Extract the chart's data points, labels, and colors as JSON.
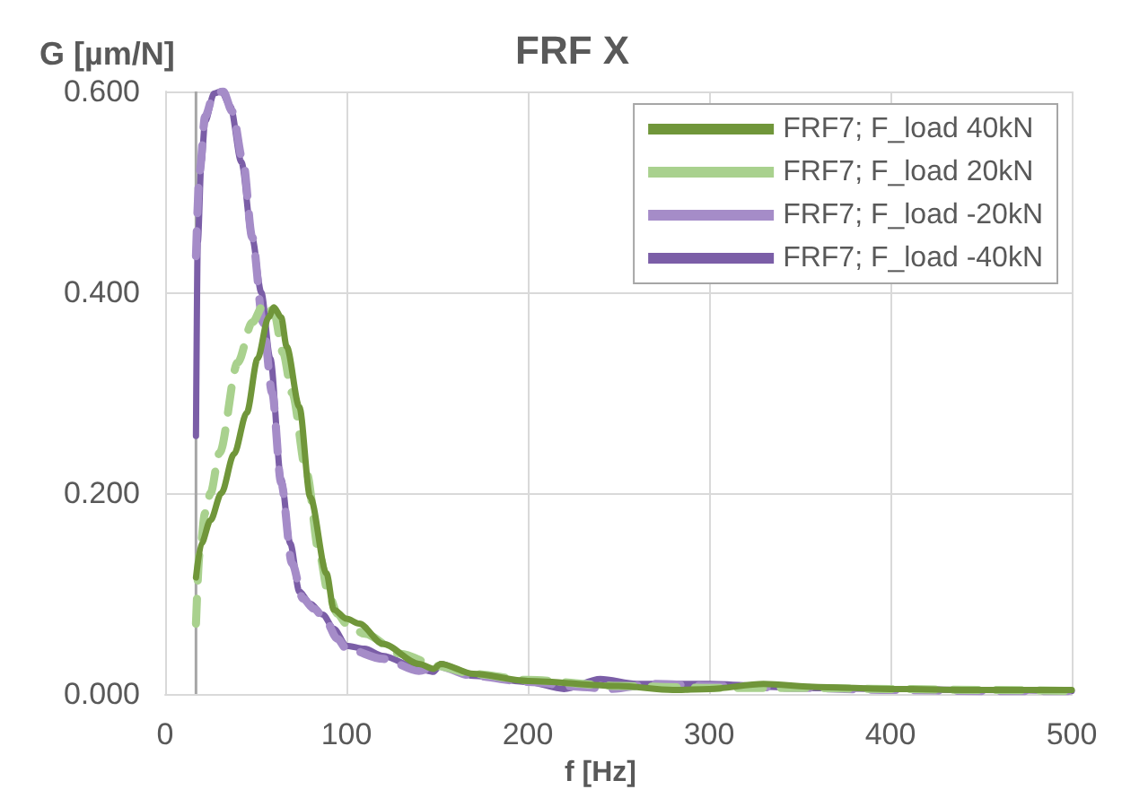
{
  "chart_data": {
    "type": "line",
    "title": "FRF X",
    "xlabel": "f [Hz]",
    "ylabel": "G [µm/N]",
    "xlim": [
      0,
      500
    ],
    "xticks": [
      0,
      100,
      200,
      300,
      400,
      500
    ],
    "ylim": [
      0,
      0.6
    ],
    "yticks": [
      {
        "value": 0,
        "label": "0.000"
      },
      {
        "value": 0.2,
        "label": "0.200"
      },
      {
        "value": 0.4,
        "label": "0.400"
      },
      {
        "value": 0.6,
        "label": "0.600"
      }
    ],
    "grid": true,
    "legend": "top right",
    "marker": "none",
    "ref_lines": [
      {
        "axis": "x",
        "value": 17,
        "label": null,
        "color": "#a6a6a6"
      }
    ],
    "series": [
      {
        "name": "FRF7; F_load 40kN",
        "color": "#70963a",
        "line_style": "solid",
        "x": [
          17,
          20,
          25,
          31,
          38,
          45,
          51,
          57,
          60,
          64,
          67,
          74,
          80,
          89,
          93,
          100,
          107,
          120,
          140,
          148,
          152,
          170,
          200,
          250,
          280,
          300,
          330,
          360,
          400,
          450,
          500
        ],
        "values": [
          0.116,
          0.15,
          0.173,
          0.2,
          0.239,
          0.28,
          0.334,
          0.375,
          0.385,
          0.375,
          0.346,
          0.286,
          0.196,
          0.12,
          0.084,
          0.075,
          0.07,
          0.05,
          0.03,
          0.025,
          0.03,
          0.02,
          0.013,
          0.008,
          0.004,
          0.005,
          0.01,
          0.007,
          0.005,
          0.004,
          0.004
        ]
      },
      {
        "name": "FRF7; F_load 20kN",
        "color": "#a9d18e",
        "line_style": "dashed",
        "x": [
          17,
          19,
          22,
          25,
          30,
          40,
          48,
          55,
          60,
          65,
          70,
          78,
          85,
          90,
          95,
          100,
          110,
          130,
          150,
          170,
          200,
          250,
          300,
          350,
          400,
          450,
          500
        ],
        "values": [
          0.07,
          0.14,
          0.18,
          0.2,
          0.24,
          0.33,
          0.37,
          0.39,
          0.38,
          0.34,
          0.3,
          0.22,
          0.14,
          0.1,
          0.08,
          0.07,
          0.06,
          0.04,
          0.028,
          0.02,
          0.014,
          0.008,
          0.006,
          0.006,
          0.005,
          0.004,
          0.003
        ]
      },
      {
        "name": "FRF7; F_load -20kN",
        "color": "#a58cc8",
        "line_style": "dashed",
        "x": [
          17,
          19,
          22,
          27,
          32,
          37,
          43,
          48,
          54,
          59,
          64,
          70,
          76,
          82,
          88,
          95,
          100,
          120,
          140,
          150,
          170,
          200,
          230,
          245,
          270,
          300,
          350,
          400,
          450,
          500
        ],
        "values": [
          0.436,
          0.52,
          0.575,
          0.598,
          0.6,
          0.58,
          0.53,
          0.455,
          0.37,
          0.3,
          0.21,
          0.13,
          0.095,
          0.085,
          0.075,
          0.055,
          0.045,
          0.035,
          0.023,
          0.028,
          0.018,
          0.012,
          0.007,
          0.005,
          0.01,
          0.008,
          0.006,
          0.004,
          0.003,
          0.003
        ]
      },
      {
        "name": "FRF7; F_load -40kN",
        "color": "#7b5ea7",
        "line_style": "solid",
        "x": [
          17,
          18,
          20,
          22,
          27,
          31,
          36,
          42,
          48,
          53,
          58,
          64,
          69,
          74,
          80,
          87,
          93,
          100,
          110,
          120,
          140,
          148,
          152,
          170,
          200,
          220,
          240,
          260,
          300,
          350,
          400,
          450,
          500
        ],
        "values": [
          0.257,
          0.45,
          0.53,
          0.57,
          0.598,
          0.6,
          0.585,
          0.53,
          0.454,
          0.4,
          0.334,
          0.214,
          0.15,
          0.102,
          0.09,
          0.079,
          0.065,
          0.048,
          0.045,
          0.038,
          0.025,
          0.022,
          0.03,
          0.018,
          0.012,
          0.005,
          0.015,
          0.01,
          0.01,
          0.006,
          0.005,
          0.004,
          0.003
        ]
      }
    ]
  }
}
